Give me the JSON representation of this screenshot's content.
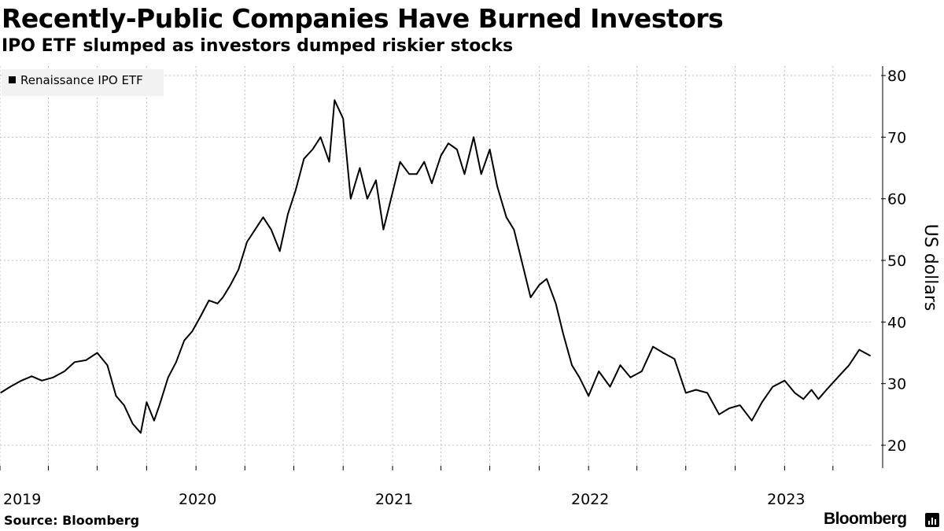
{
  "header": {
    "title": "Recently-Public Companies Have Burned Investors",
    "subtitle": "IPO ETF slumped as investors dumped riskier stocks"
  },
  "footer": {
    "source": "Source: Bloomberg",
    "brand": "Bloomberg"
  },
  "colors": {
    "line": "#000000",
    "grid": "#bdbdbd",
    "legend_bg": "#f2f2f2"
  },
  "chart_data": {
    "type": "line",
    "title": "Recently-Public Companies Have Burned Investors",
    "subtitle": "IPO ETF slumped as investors dumped riskier stocks",
    "ylabel": "US dollars",
    "xlabel": "",
    "ylim": [
      20,
      80
    ],
    "xlim": [
      "2019-01-01",
      "2023-06-15"
    ],
    "y_ticks": [
      20,
      30,
      40,
      50,
      60,
      70,
      80
    ],
    "x_ticks": [
      {
        "label": "2019",
        "date": "2019-01-01"
      },
      {
        "label": "2020",
        "date": "2020-01-01"
      },
      {
        "label": "2021",
        "date": "2021-01-01"
      },
      {
        "label": "2022",
        "date": "2022-01-01"
      },
      {
        "label": "2023",
        "date": "2023-01-01"
      }
    ],
    "grid": true,
    "y_axis_position": "right",
    "legend_position": "top-left",
    "series": [
      {
        "name": "Renaissance IPO ETF",
        "x": [
          "2019-01-02",
          "2019-01-20",
          "2019-02-10",
          "2019-03-01",
          "2019-03-20",
          "2019-04-10",
          "2019-05-01",
          "2019-05-20",
          "2019-06-10",
          "2019-07-01",
          "2019-07-20",
          "2019-08-05",
          "2019-08-20",
          "2019-09-05",
          "2019-09-20",
          "2019-10-01",
          "2019-10-15",
          "2019-10-25",
          "2019-11-10",
          "2019-11-25",
          "2019-12-10",
          "2019-12-25",
          "2020-01-10",
          "2020-01-25",
          "2020-02-10",
          "2020-02-20",
          "2020-03-05",
          "2020-03-20",
          "2020-04-05",
          "2020-04-20",
          "2020-05-05",
          "2020-05-20",
          "2020-06-05",
          "2020-06-20",
          "2020-07-05",
          "2020-07-20",
          "2020-08-05",
          "2020-08-20",
          "2020-09-05",
          "2020-09-15",
          "2020-10-01",
          "2020-10-15",
          "2020-11-01",
          "2020-11-15",
          "2020-12-01",
          "2020-12-15",
          "2021-01-01",
          "2021-01-15",
          "2021-02-01",
          "2021-02-15",
          "2021-03-01",
          "2021-03-15",
          "2021-04-01",
          "2021-04-15",
          "2021-05-01",
          "2021-05-15",
          "2021-06-01",
          "2021-06-15",
          "2021-07-01",
          "2021-07-15",
          "2021-08-01",
          "2021-08-15",
          "2021-09-01",
          "2021-09-15",
          "2021-10-01",
          "2021-10-15",
          "2021-11-01",
          "2021-11-15",
          "2021-12-01",
          "2021-12-15",
          "2022-01-01",
          "2022-01-20",
          "2022-02-10",
          "2022-03-01",
          "2022-03-20",
          "2022-04-10",
          "2022-05-01",
          "2022-05-20",
          "2022-06-10",
          "2022-07-01",
          "2022-07-20",
          "2022-08-10",
          "2022-09-01",
          "2022-09-20",
          "2022-10-10",
          "2022-11-01",
          "2022-11-20",
          "2022-12-10",
          "2023-01-01",
          "2023-01-20",
          "2023-02-05",
          "2023-02-20",
          "2023-03-05",
          "2023-03-20",
          "2023-04-10",
          "2023-05-01",
          "2023-05-20",
          "2023-06-10"
        ],
        "values": [
          28.5,
          29.5,
          30.5,
          31.2,
          30.5,
          31.0,
          32.0,
          33.5,
          33.8,
          35.0,
          33.0,
          28.0,
          26.5,
          23.5,
          22.0,
          27.0,
          24.0,
          26.5,
          31.0,
          33.5,
          37.0,
          38.5,
          41.0,
          43.5,
          43.0,
          44.0,
          46.0,
          48.5,
          53.0,
          55.0,
          57.0,
          55.0,
          51.5,
          57.5,
          61.5,
          66.5,
          68.0,
          70.0,
          66.0,
          76.0,
          73.0,
          60.0,
          65.0,
          60.0,
          63.0,
          55.0,
          61.0,
          66.0,
          64.0,
          64.0,
          66.0,
          62.5,
          67.0,
          69.0,
          68.0,
          64.0,
          70.0,
          64.0,
          68.0,
          62.0,
          57.0,
          55.0,
          49.0,
          44.0,
          46.0,
          47.0,
          43.0,
          38.0,
          33.0,
          31.0,
          28.0,
          32.0,
          29.5,
          33.0,
          31.0,
          32.0,
          36.0,
          35.0,
          34.0,
          28.5,
          29.0,
          28.5,
          25.0,
          26.0,
          26.5,
          24.0,
          27.0,
          29.5,
          30.5,
          28.5,
          27.5,
          29.0,
          27.5,
          29.0,
          31.0,
          33.0,
          35.5,
          34.5
        ]
      }
    ]
  }
}
